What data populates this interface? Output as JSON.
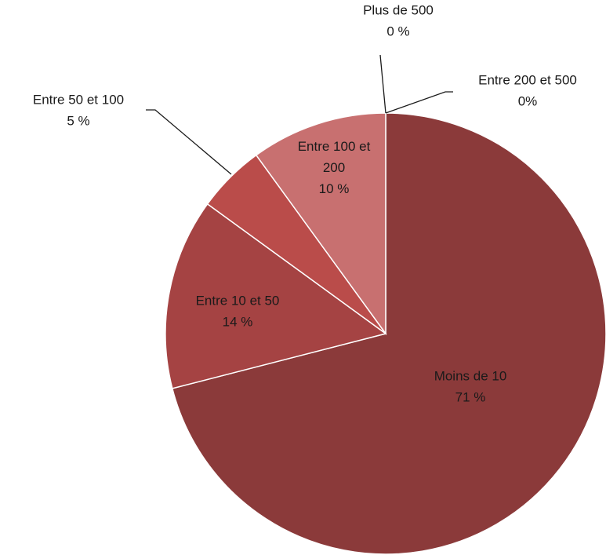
{
  "chart_data": {
    "type": "pie",
    "title": "",
    "start_angle_deg": 0,
    "direction": "clockwise",
    "slices": [
      {
        "label_lines": [
          "Moins de 10",
          "71 %"
        ],
        "value": 71,
        "color": "#8B3A3A",
        "label_placement": "inside"
      },
      {
        "label_lines": [
          "Entre 10 et 50",
          "14 %"
        ],
        "value": 14,
        "color": "#A54343",
        "label_placement": "inside"
      },
      {
        "label_lines": [
          "Entre 50 et 100",
          "5 %"
        ],
        "value": 5,
        "color": "#BA4C4A",
        "label_placement": "outside"
      },
      {
        "label_lines": [
          "Entre 100 et",
          "200",
          "10 %"
        ],
        "value": 10,
        "color": "#C87070",
        "label_placement": "inside"
      },
      {
        "label_lines": [
          "Plus de 500",
          "0 %"
        ],
        "value": 0,
        "color": "#D49A98",
        "label_placement": "outside"
      },
      {
        "label_lines": [
          "Entre 200 et 500",
          "0%"
        ],
        "value": 0,
        "color": "#CC8A88",
        "label_placement": "outside"
      }
    ]
  }
}
